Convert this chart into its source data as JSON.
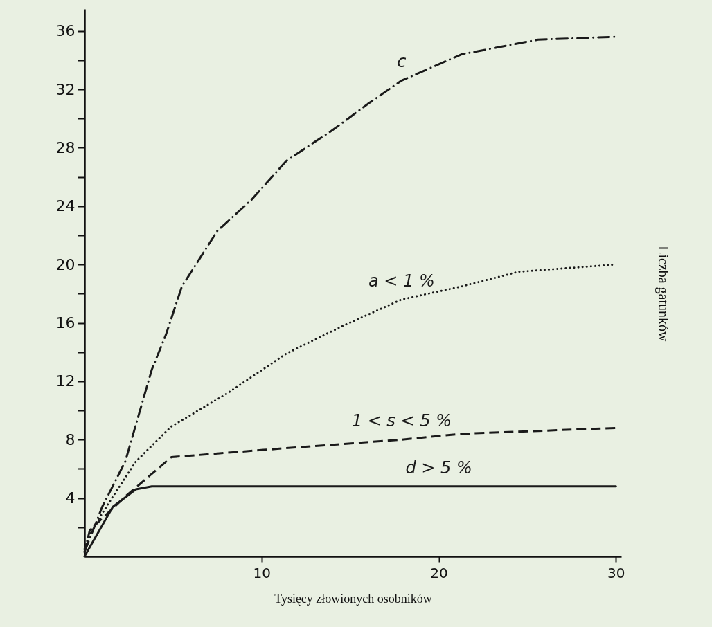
{
  "chart_data": {
    "type": "line",
    "xlabel": "Tysięcy złowionych osobników",
    "ylabel": "Liczba gatunków",
    "xlim": [
      0,
      30.3
    ],
    "ylim": [
      0,
      37.5
    ],
    "xticks": [
      10,
      20,
      30
    ],
    "yticks": [
      {
        "value": 2,
        "label": null
      },
      4,
      {
        "value": 6,
        "label": null
      },
      8,
      {
        "value": 10,
        "label": null
      },
      12,
      {
        "value": 14,
        "label": null
      },
      16,
      {
        "value": 18,
        "label": null
      },
      20,
      {
        "value": 22,
        "label": null
      },
      24,
      {
        "value": 26,
        "label": null
      },
      28,
      {
        "value": 30,
        "label": null
      },
      32,
      {
        "value": 34,
        "label": null
      },
      36
    ],
    "grid": false,
    "marker": "none",
    "series": [
      {
        "name": "c",
        "color": "#1a1a1a",
        "line_style": "dashdot",
        "x": [
          0,
          1,
          2.3,
          3.8,
          4.6,
          5.5,
          7.5,
          9.4,
          11.4,
          14,
          16,
          17.9,
          21.3,
          25.6,
          30
        ],
        "values": [
          0.3,
          3.4,
          6.5,
          12.8,
          15.2,
          18.5,
          22.3,
          24.4,
          27.1,
          29.2,
          31.0,
          32.6,
          34.4,
          35.4,
          35.6
        ]
      },
      {
        "name": "a < 1 %",
        "color": "#1a1a1a",
        "line_style": "dotted",
        "x": [
          0,
          0.3,
          1.6,
          2.9,
          4.9,
          8.1,
          11.4,
          14.6,
          17.9,
          21.3,
          24.5,
          30
        ],
        "values": [
          0.5,
          1.6,
          4.1,
          6.5,
          8.9,
          11.2,
          13.9,
          15.8,
          17.6,
          18.5,
          19.5,
          20.0
        ]
      },
      {
        "name": "1 < s < 5 %",
        "color": "#1a1a1a",
        "line_style": "dashed",
        "x": [
          0,
          0.3,
          2.3,
          4.9,
          10.1,
          17.9,
          21.3,
          30
        ],
        "values": [
          0.3,
          1.8,
          4.1,
          6.8,
          7.3,
          8.0,
          8.4,
          8.8
        ]
      },
      {
        "name": "d > 5 %",
        "color": "#1a1a1a",
        "line_style": "solid",
        "x": [
          0,
          1.6,
          2.9,
          3.8,
          10,
          20,
          30
        ],
        "values": [
          0,
          3.4,
          4.6,
          4.8,
          4.8,
          4.8,
          4.8
        ]
      }
    ]
  }
}
